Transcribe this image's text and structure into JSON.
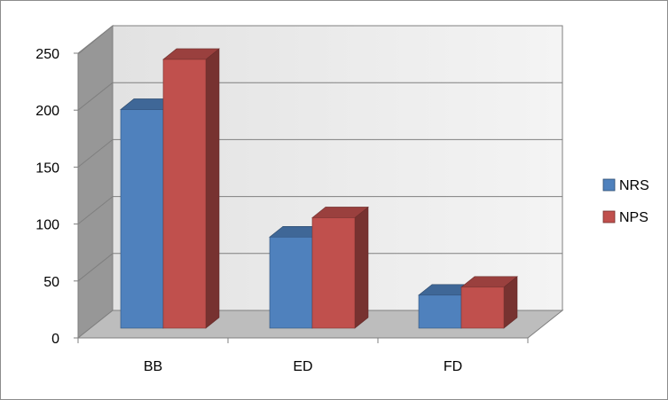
{
  "chart_data": {
    "type": "bar",
    "title": "",
    "xlabel": "",
    "ylabel": "",
    "categories": [
      "BB",
      "ED",
      "FD"
    ],
    "series": [
      {
        "name": "NRS",
        "values": [
          192,
          80,
          29
        ],
        "color": "#4f81bd"
      },
      {
        "name": "NPS",
        "values": [
          236,
          97,
          36
        ],
        "color": "#c0504d"
      }
    ],
    "ylim": [
      0,
      250
    ],
    "yticks": [
      0,
      50,
      100,
      150,
      200,
      250
    ],
    "grid": true,
    "three_d": true,
    "legend": "right"
  }
}
